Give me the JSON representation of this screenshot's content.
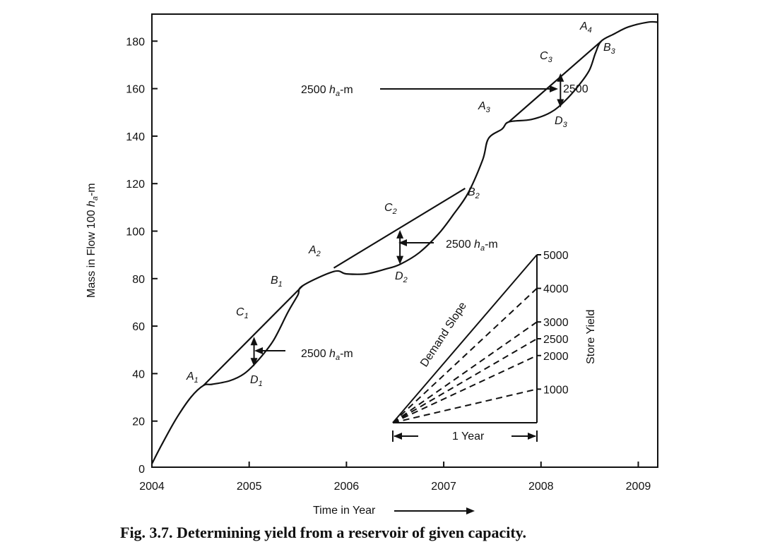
{
  "chart_data": {
    "type": "line",
    "title": "",
    "xlabel": "Time in Year",
    "ylabel_prefix": "Mass in Flow 100 ",
    "ylabel_unit_var": "h",
    "ylabel_unit_sub": "a",
    "ylabel_unit_suffix": "-m",
    "xlim": [
      2004,
      2009.2
    ],
    "ylim": [
      0,
      190
    ],
    "x_ticks": [
      2004,
      2005,
      2006,
      2007,
      2008,
      2009
    ],
    "y_ticks": [
      0,
      20,
      40,
      60,
      80,
      100,
      120,
      140,
      160,
      180
    ],
    "mass_curve": [
      [
        2004.0,
        2
      ],
      [
        2004.1,
        10
      ],
      [
        2004.25,
        21
      ],
      [
        2004.4,
        30
      ],
      [
        2004.53,
        35
      ],
      [
        2004.62,
        35.5
      ],
      [
        2004.8,
        37
      ],
      [
        2004.95,
        40
      ],
      [
        2005.1,
        46
      ],
      [
        2005.25,
        54
      ],
      [
        2005.4,
        66
      ],
      [
        2005.5,
        73
      ],
      [
        2005.55,
        77
      ],
      [
        2005.87,
        83
      ],
      [
        2006.0,
        82
      ],
      [
        2006.2,
        82
      ],
      [
        2006.4,
        84
      ],
      [
        2006.55,
        86
      ],
      [
        2006.75,
        91
      ],
      [
        2006.95,
        99
      ],
      [
        2007.1,
        107
      ],
      [
        2007.25,
        116
      ],
      [
        2007.4,
        130
      ],
      [
        2007.46,
        139
      ],
      [
        2007.6,
        143
      ],
      [
        2007.67,
        146
      ],
      [
        2007.9,
        147
      ],
      [
        2008.1,
        150
      ],
      [
        2008.25,
        155
      ],
      [
        2008.4,
        162
      ],
      [
        2008.5,
        168
      ],
      [
        2008.56,
        175
      ],
      [
        2008.62,
        180
      ],
      [
        2008.75,
        183
      ],
      [
        2008.9,
        186
      ],
      [
        2009.1,
        188
      ],
      [
        2009.2,
        188
      ]
    ],
    "demand_lines": [
      {
        "from": [
          2004.53,
          35
        ],
        "to": [
          2005.55,
          77
        ]
      },
      {
        "from": [
          2005.87,
          84.5
        ],
        "to": [
          2007.22,
          118
        ]
      },
      {
        "from": [
          2007.67,
          146
        ],
        "to": [
          2008.62,
          180
        ]
      }
    ],
    "deficit_arrows": [
      {
        "x": 2005.05,
        "y_top": 55.5,
        "y_bottom": 43
      },
      {
        "x": 2006.55,
        "y_top": 100.5,
        "y_bottom": 86
      },
      {
        "x": 2008.2,
        "y_top": 166.5,
        "y_bottom": 152
      }
    ],
    "annotations": [
      {
        "id": "A1",
        "main": "A",
        "sub": "1",
        "italic": true
      },
      {
        "id": "B1",
        "main": "B",
        "sub": "1",
        "italic": true
      },
      {
        "id": "C1",
        "main": "C",
        "sub": "1",
        "italic": true
      },
      {
        "id": "D1",
        "main": "D",
        "sub": "1",
        "italic": true
      },
      {
        "id": "A2",
        "main": "A",
        "sub": "2",
        "italic": true
      },
      {
        "id": "B2",
        "main": "B",
        "sub": "2",
        "italic": true
      },
      {
        "id": "C2",
        "main": "C",
        "sub": "2",
        "italic": true
      },
      {
        "id": "D2",
        "main": "D",
        "sub": "2",
        "italic": true
      },
      {
        "id": "A3",
        "main": "A",
        "sub": "3",
        "italic": true
      },
      {
        "id": "B3",
        "main": "B",
        "sub": "3",
        "italic": true
      },
      {
        "id": "C3",
        "main": "C",
        "sub": "3",
        "italic": true
      },
      {
        "id": "D3",
        "main": "D",
        "sub": "3",
        "italic": true
      },
      {
        "id": "A4",
        "main": "A",
        "sub": "4",
        "italic": true
      }
    ],
    "callouts": {
      "c1": {
        "value": "2500 ",
        "var": "h",
        "sub": "a",
        "suffix": "-m"
      },
      "c2": {
        "value": "2500 ",
        "var": "h",
        "sub": "a",
        "suffix": "-m"
      },
      "c3": {
        "value": "2500 ",
        "var": "h",
        "sub": "a",
        "suffix": "-m"
      },
      "c4": {
        "value": "2500"
      }
    },
    "inset": {
      "demand_slope_label": "Demand Slope",
      "store_yield_label": "Store Yield",
      "period_label": "1 Year",
      "yield_ticks": [
        "5000",
        "4000",
        "3000",
        "2500",
        "2000",
        "1000"
      ],
      "dashed_yields": [
        4000,
        3000,
        2500,
        2000,
        1000
      ]
    }
  },
  "caption_fragment": "Fig. 3.7. Determining yield from a reservoir of given capacity."
}
